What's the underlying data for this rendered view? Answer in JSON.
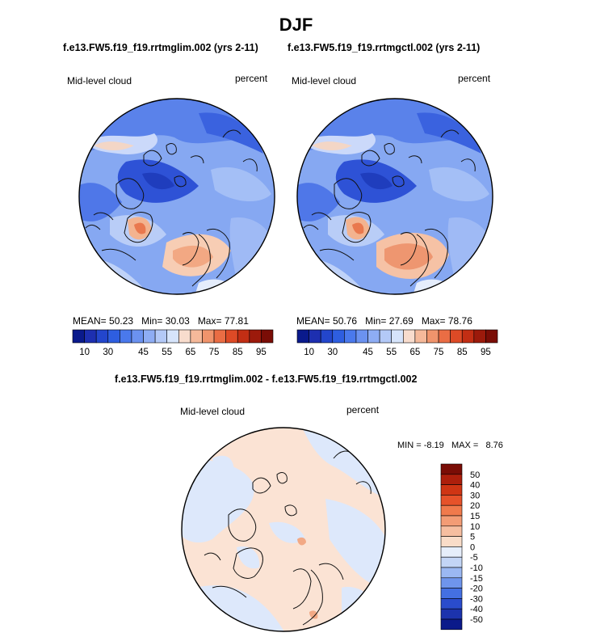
{
  "title": "DJF",
  "panels": [
    {
      "caption": "f.e13.FW5.f19_f19.rrtmglim.002 (yrs 2-11)",
      "var_label": "Mid-level cloud",
      "units": "percent",
      "stats": {
        "mean_label": "MEAN=",
        "mean": "50.23",
        "min_label": "Min=",
        "min": "30.03",
        "max_label": "Max=",
        "max": "77.81"
      }
    },
    {
      "caption": "f.e13.FW5.f19_f19.rrtmgctl.002 (yrs 2-11)",
      "var_label": "Mid-level cloud",
      "units": "percent",
      "stats": {
        "mean_label": "MEAN=",
        "mean": "50.76",
        "min_label": "Min=",
        "min": "27.69",
        "max_label": "Max=",
        "max": "78.76"
      }
    }
  ],
  "diff": {
    "caption": "f.e13.FW5.f19_f19.rrtmglim.002 - f.e13.FW5.f19_f19.rrtmgctl.002",
    "var_label": "Mid-level cloud",
    "units": "percent",
    "min_label": "MIN =",
    "min": "-8.19",
    "max_label": "MAX =",
    "max": "8.76"
  },
  "chart_data": [
    {
      "type": "heatmap",
      "projection": "north-polar-stereographic",
      "title": "f.e13.FW5.f19_f19.rrtmglim.002 (yrs 2-11)",
      "variable": "Mid-level cloud",
      "units": "percent",
      "mean": 50.23,
      "min": 30.03,
      "max": 77.81,
      "colorbar_levels": [
        10,
        15,
        20,
        25,
        30,
        35,
        40,
        45,
        50,
        55,
        60,
        65,
        70,
        75,
        80,
        85,
        90,
        95
      ],
      "colorbar_tick_labels": [
        "10",
        "30",
        "45",
        "55",
        "65",
        "75",
        "85",
        "95"
      ],
      "colorbar_colors": [
        "#0a1a8c",
        "#1d2fb0",
        "#2346cc",
        "#2e5ee0",
        "#4a79ec",
        "#6b92f0",
        "#8eadf4",
        "#b3c9f7",
        "#d6e4fb",
        "#f8dccd",
        "#f5b99a",
        "#f0946c",
        "#ea6d44",
        "#dd4a26",
        "#c22e14",
        "#9c1a0b",
        "#7a0d06"
      ]
    },
    {
      "type": "heatmap",
      "projection": "north-polar-stereographic",
      "title": "f.e13.FW5.f19_f19.rrtmgctl.002 (yrs 2-11)",
      "variable": "Mid-level cloud",
      "units": "percent",
      "mean": 50.76,
      "min": 27.69,
      "max": 78.76,
      "colorbar_levels": [
        10,
        15,
        20,
        25,
        30,
        35,
        40,
        45,
        50,
        55,
        60,
        65,
        70,
        75,
        80,
        85,
        90,
        95
      ],
      "colorbar_tick_labels": [
        "10",
        "30",
        "45",
        "55",
        "65",
        "75",
        "85",
        "95"
      ]
    },
    {
      "type": "heatmap",
      "projection": "north-polar-stereographic",
      "title": "f.e13.FW5.f19_f19.rrtmglim.002 - f.e13.FW5.f19_f19.rrtmgctl.002",
      "variable": "Mid-level cloud",
      "units": "percent",
      "min": -8.19,
      "max": 8.76,
      "colorbar_tick_labels": [
        "50",
        "40",
        "30",
        "20",
        "15",
        "10",
        "5",
        "0",
        "-5",
        "-10",
        "-15",
        "-20",
        "-30",
        "-40",
        "-50"
      ],
      "colorbar_colors": [
        "#7a0d06",
        "#ad1f0c",
        "#cf3514",
        "#e6522a",
        "#f07a4c",
        "#f39c75",
        "#f6bea0",
        "#f9dcc8",
        "#e6eefb",
        "#c3d5f6",
        "#9bb8f2",
        "#6f95ec",
        "#4470e2",
        "#2a4ccc",
        "#1c33ad",
        "#0b1a8a"
      ]
    }
  ]
}
